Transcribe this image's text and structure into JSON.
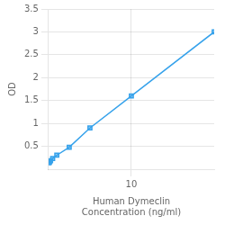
{
  "chart_data": {
    "type": "line",
    "xlabel": "Human Dymeclin\nConcentration (ng/ml)",
    "ylabel": "OD",
    "x": [
      0.0625,
      0.125,
      0.25,
      0.5,
      1,
      2.5,
      5,
      10,
      20
    ],
    "values": [
      0.138,
      0.158,
      0.183,
      0.233,
      0.305,
      0.48,
      0.9,
      1.6,
      3.0
    ],
    "marker": "square",
    "xlim": [
      0,
      20
    ],
    "xticks": [
      10
    ],
    "ylim": [
      0,
      3.5
    ],
    "yticks": [
      0.5,
      1,
      1.5,
      2,
      2.5,
      3,
      3.5
    ],
    "grid": true
  }
}
